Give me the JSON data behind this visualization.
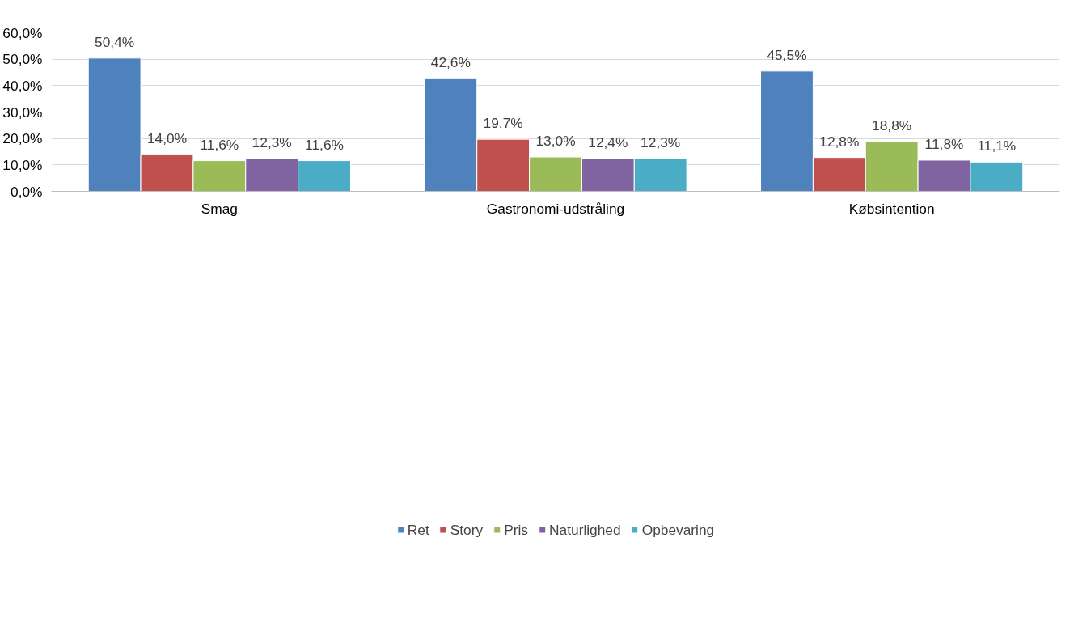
{
  "chart_data": {
    "type": "bar",
    "categories": [
      "Smag",
      "Gastronomi-udstråling",
      "Købsintention"
    ],
    "series": [
      {
        "name": "Ret",
        "color": "#4f81bd",
        "values": [
          50.4,
          42.6,
          45.5
        ],
        "value_labels": [
          "50,4%",
          "42,6%",
          "45,5%"
        ]
      },
      {
        "name": "Story",
        "color": "#c0504d",
        "values": [
          14.0,
          19.7,
          12.8
        ],
        "value_labels": [
          "14,0%",
          "19,7%",
          "12,8%"
        ]
      },
      {
        "name": "Pris",
        "color": "#9bbb59",
        "values": [
          11.6,
          13.0,
          18.8
        ],
        "value_labels": [
          "11,6%",
          "13,0%",
          "18,8%"
        ]
      },
      {
        "name": "Naturlighed",
        "color": "#8064a2",
        "values": [
          12.3,
          12.4,
          11.8
        ],
        "value_labels": [
          "12,3%",
          "12,4%",
          "11,8%"
        ]
      },
      {
        "name": "Opbevaring",
        "color": "#4bacc6",
        "values": [
          11.6,
          12.3,
          11.1
        ],
        "value_labels": [
          "11,6%",
          "12,3%",
          "11,1%"
        ]
      }
    ],
    "ylim": [
      0,
      60
    ],
    "yticks": [
      {
        "value": 0,
        "label": "0,0%"
      },
      {
        "value": 10,
        "label": "10,0%"
      },
      {
        "value": 20,
        "label": "20,0%"
      },
      {
        "value": 30,
        "label": "30,0%"
      },
      {
        "value": 40,
        "label": "40,0%"
      },
      {
        "value": 50,
        "label": "50,0%"
      },
      {
        "value": 60,
        "label": "60,0%"
      }
    ],
    "grid": "y",
    "legend": "bottom"
  }
}
